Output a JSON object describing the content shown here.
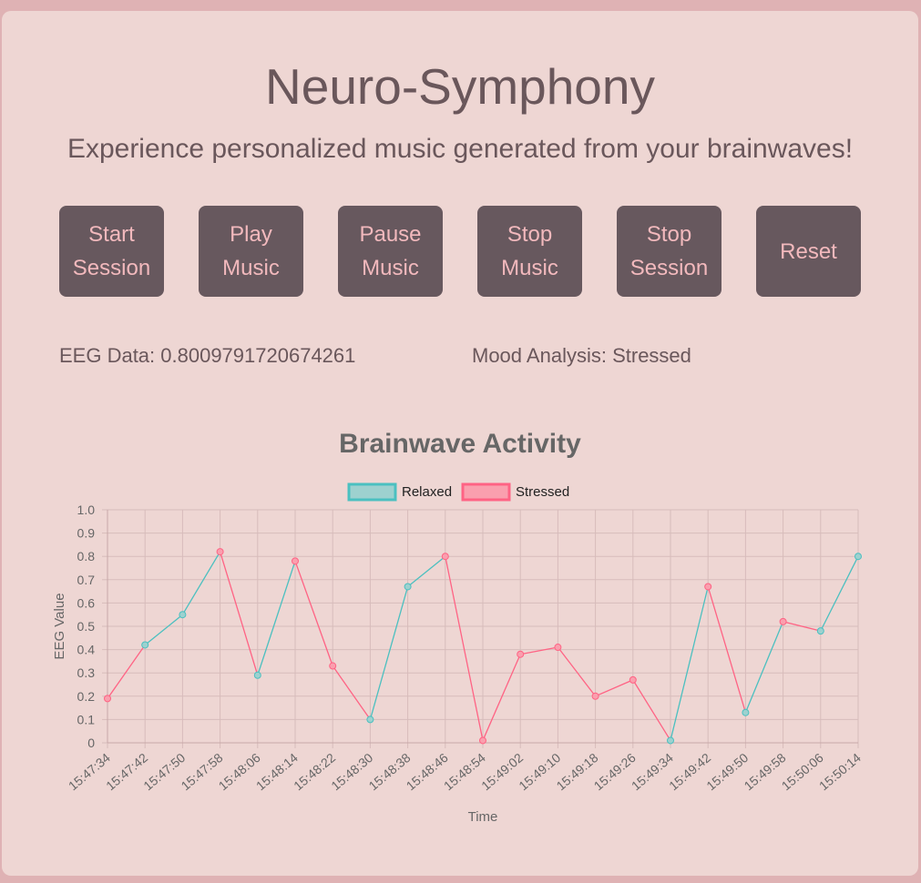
{
  "header": {
    "title": "Neuro-Symphony",
    "subtitle": "Experience personalized music generated from your brainwaves!"
  },
  "controls": [
    {
      "name": "start-session-button",
      "label": "Start Session"
    },
    {
      "name": "play-music-button",
      "label": "Play Music"
    },
    {
      "name": "pause-music-button",
      "label": "Pause Music"
    },
    {
      "name": "stop-music-button",
      "label": "Stop Music"
    },
    {
      "name": "stop-session-button",
      "label": "Stop Session"
    },
    {
      "name": "reset-button",
      "label": "Reset"
    }
  ],
  "readouts": {
    "eeg_label": "EEG Data: 0.8009791720674261",
    "mood_label": "Mood Analysis: Stressed"
  },
  "colors": {
    "relaxed": "#4bc0c0",
    "relaxed_fill": "#9dd1cf",
    "stressed": "#ff6384",
    "stressed_fill": "#fa9fae",
    "button_bg": "#67585e",
    "button_text": "#f2b9bd"
  },
  "chart_data": {
    "type": "line",
    "title": "Brainwave Activity",
    "xlabel": "Time",
    "ylabel": "EEG Value",
    "ylim": [
      0,
      1
    ],
    "yticks": [
      "0",
      "0.1",
      "0.2",
      "0.3",
      "0.4",
      "0.5",
      "0.6",
      "0.7",
      "0.8",
      "0.9",
      "1.0"
    ],
    "grid": true,
    "legend_position": "top",
    "legend": [
      {
        "name": "Relaxed",
        "color": "#4bc0c0"
      },
      {
        "name": "Stressed",
        "color": "#ff6384"
      }
    ],
    "x": [
      "15:47:34",
      "15:47:42",
      "15:47:50",
      "15:47:58",
      "15:48:06",
      "15:48:14",
      "15:48:22",
      "15:48:30",
      "15:48:38",
      "15:48:46",
      "15:48:54",
      "15:49:02",
      "15:49:10",
      "15:49:18",
      "15:49:26",
      "15:49:34",
      "15:49:42",
      "15:49:50",
      "15:49:58",
      "15:50:06",
      "15:50:14"
    ],
    "values": [
      0.19,
      0.42,
      0.55,
      0.82,
      0.29,
      0.78,
      0.33,
      0.1,
      0.67,
      0.8,
      0.01,
      0.38,
      0.41,
      0.2,
      0.27,
      0.01,
      0.67,
      0.13,
      0.52,
      0.48,
      0.8
    ],
    "segment_series": [
      "Stressed",
      "Relaxed",
      "Relaxed",
      "Stressed",
      "Relaxed",
      "Stressed",
      "Stressed",
      "Relaxed",
      "Relaxed",
      "Stressed",
      "Stressed",
      "Stressed",
      "Stressed",
      "Stressed",
      "Stressed",
      "Relaxed",
      "Stressed",
      "Relaxed",
      "Stressed",
      "Relaxed"
    ]
  }
}
